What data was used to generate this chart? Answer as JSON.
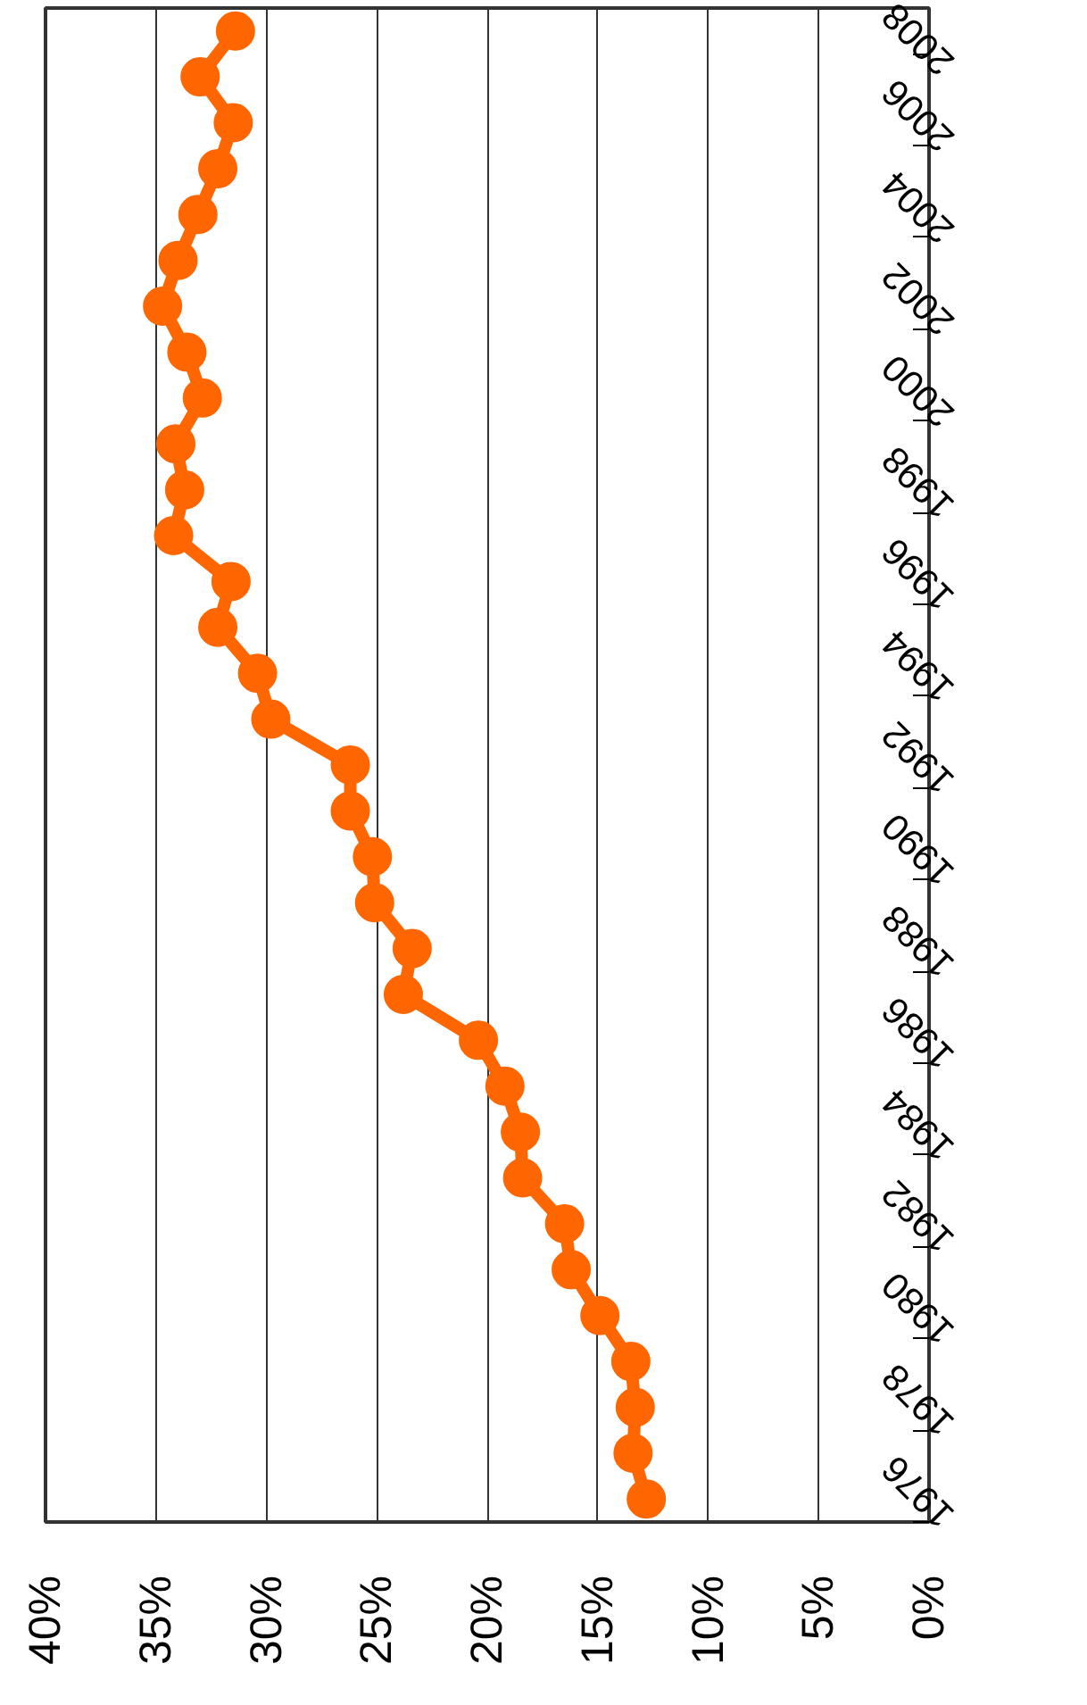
{
  "chart_data": {
    "type": "line",
    "orientation": "horizontal",
    "x": [
      1976.5,
      1977.5,
      1978.5,
      1979.5,
      1980.5,
      1981.5,
      1982.5,
      1983.5,
      1984.5,
      1985.5,
      1986.5,
      1987.5,
      1988.5,
      1989.5,
      1990.5,
      1991.5,
      1992.5,
      1993.5,
      1994.5,
      1995.5,
      1996.5,
      1997.5,
      1998.5,
      1999.5,
      2000.5,
      2001.5,
      2002.5,
      2003.5,
      2004.5,
      2005.5,
      2006.5,
      2007.5,
      2008.5
    ],
    "series": [
      {
        "color": "#ff6600",
        "values": [
          12.8,
          13.4,
          13.3,
          13.5,
          14.9,
          16.2,
          16.5,
          18.4,
          18.5,
          19.2,
          20.4,
          23.8,
          23.4,
          25.1,
          25.2,
          26.2,
          26.2,
          29.8,
          30.4,
          32.2,
          31.6,
          34.2,
          33.7,
          34.1,
          32.9,
          33.6,
          34.7,
          34.0,
          33.1,
          32.2,
          31.5,
          33.0,
          31.4
        ]
      }
    ],
    "ylim": [
      1976,
      2009
    ],
    "yticks": [
      1976,
      1978,
      1980,
      1982,
      1984,
      1986,
      1988,
      1990,
      1992,
      1994,
      1996,
      1998,
      2000,
      2002,
      2004,
      2006,
      2008
    ],
    "xlim": [
      40,
      0
    ],
    "xticks": [
      {
        "value": 0,
        "label": "0%"
      },
      {
        "value": 5,
        "label": "5%"
      },
      {
        "value": 10,
        "label": "10%"
      },
      {
        "value": 15,
        "label": "15%"
      },
      {
        "value": 20,
        "label": "20%"
      },
      {
        "value": 25,
        "label": "25%"
      },
      {
        "value": 30,
        "label": "30%"
      },
      {
        "value": 35,
        "label": "35%"
      },
      {
        "value": 40,
        "label": "40%"
      }
    ],
    "grid": "x",
    "marker": "circle",
    "line_style": "solid"
  }
}
